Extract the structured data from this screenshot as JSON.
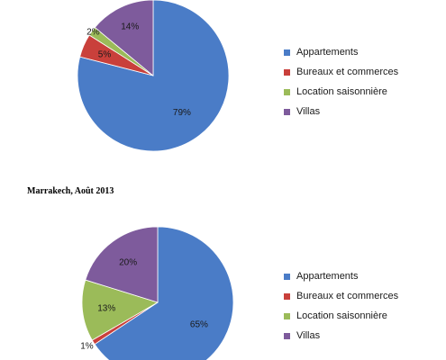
{
  "chart_data": [
    {
      "type": "pie",
      "title": "",
      "start_value_is_cutoff": true,
      "categories": [
        "Appartements",
        "Bureaux et commerces",
        "Location saisonnière",
        "Villas"
      ],
      "values": [
        79,
        5,
        2,
        14
      ],
      "labels": [
        "79%",
        "5%",
        "2%",
        "14%"
      ],
      "colors": [
        "#4a7cc7",
        "#c9403b",
        "#9bbb59",
        "#7e5b9c"
      ],
      "legend": "right"
    },
    {
      "type": "pie",
      "title": "Marrakech, Août 2013",
      "categories": [
        "Appartements",
        "Bureaux et commerces",
        "Location saisonnière",
        "Villas"
      ],
      "values": [
        65,
        1,
        13,
        20
      ],
      "labels": [
        "65%",
        "1%",
        "13%",
        "20%"
      ],
      "colors": [
        "#4a7cc7",
        "#c9403b",
        "#9bbb59",
        "#7e5b9c"
      ],
      "legend": "right"
    }
  ]
}
